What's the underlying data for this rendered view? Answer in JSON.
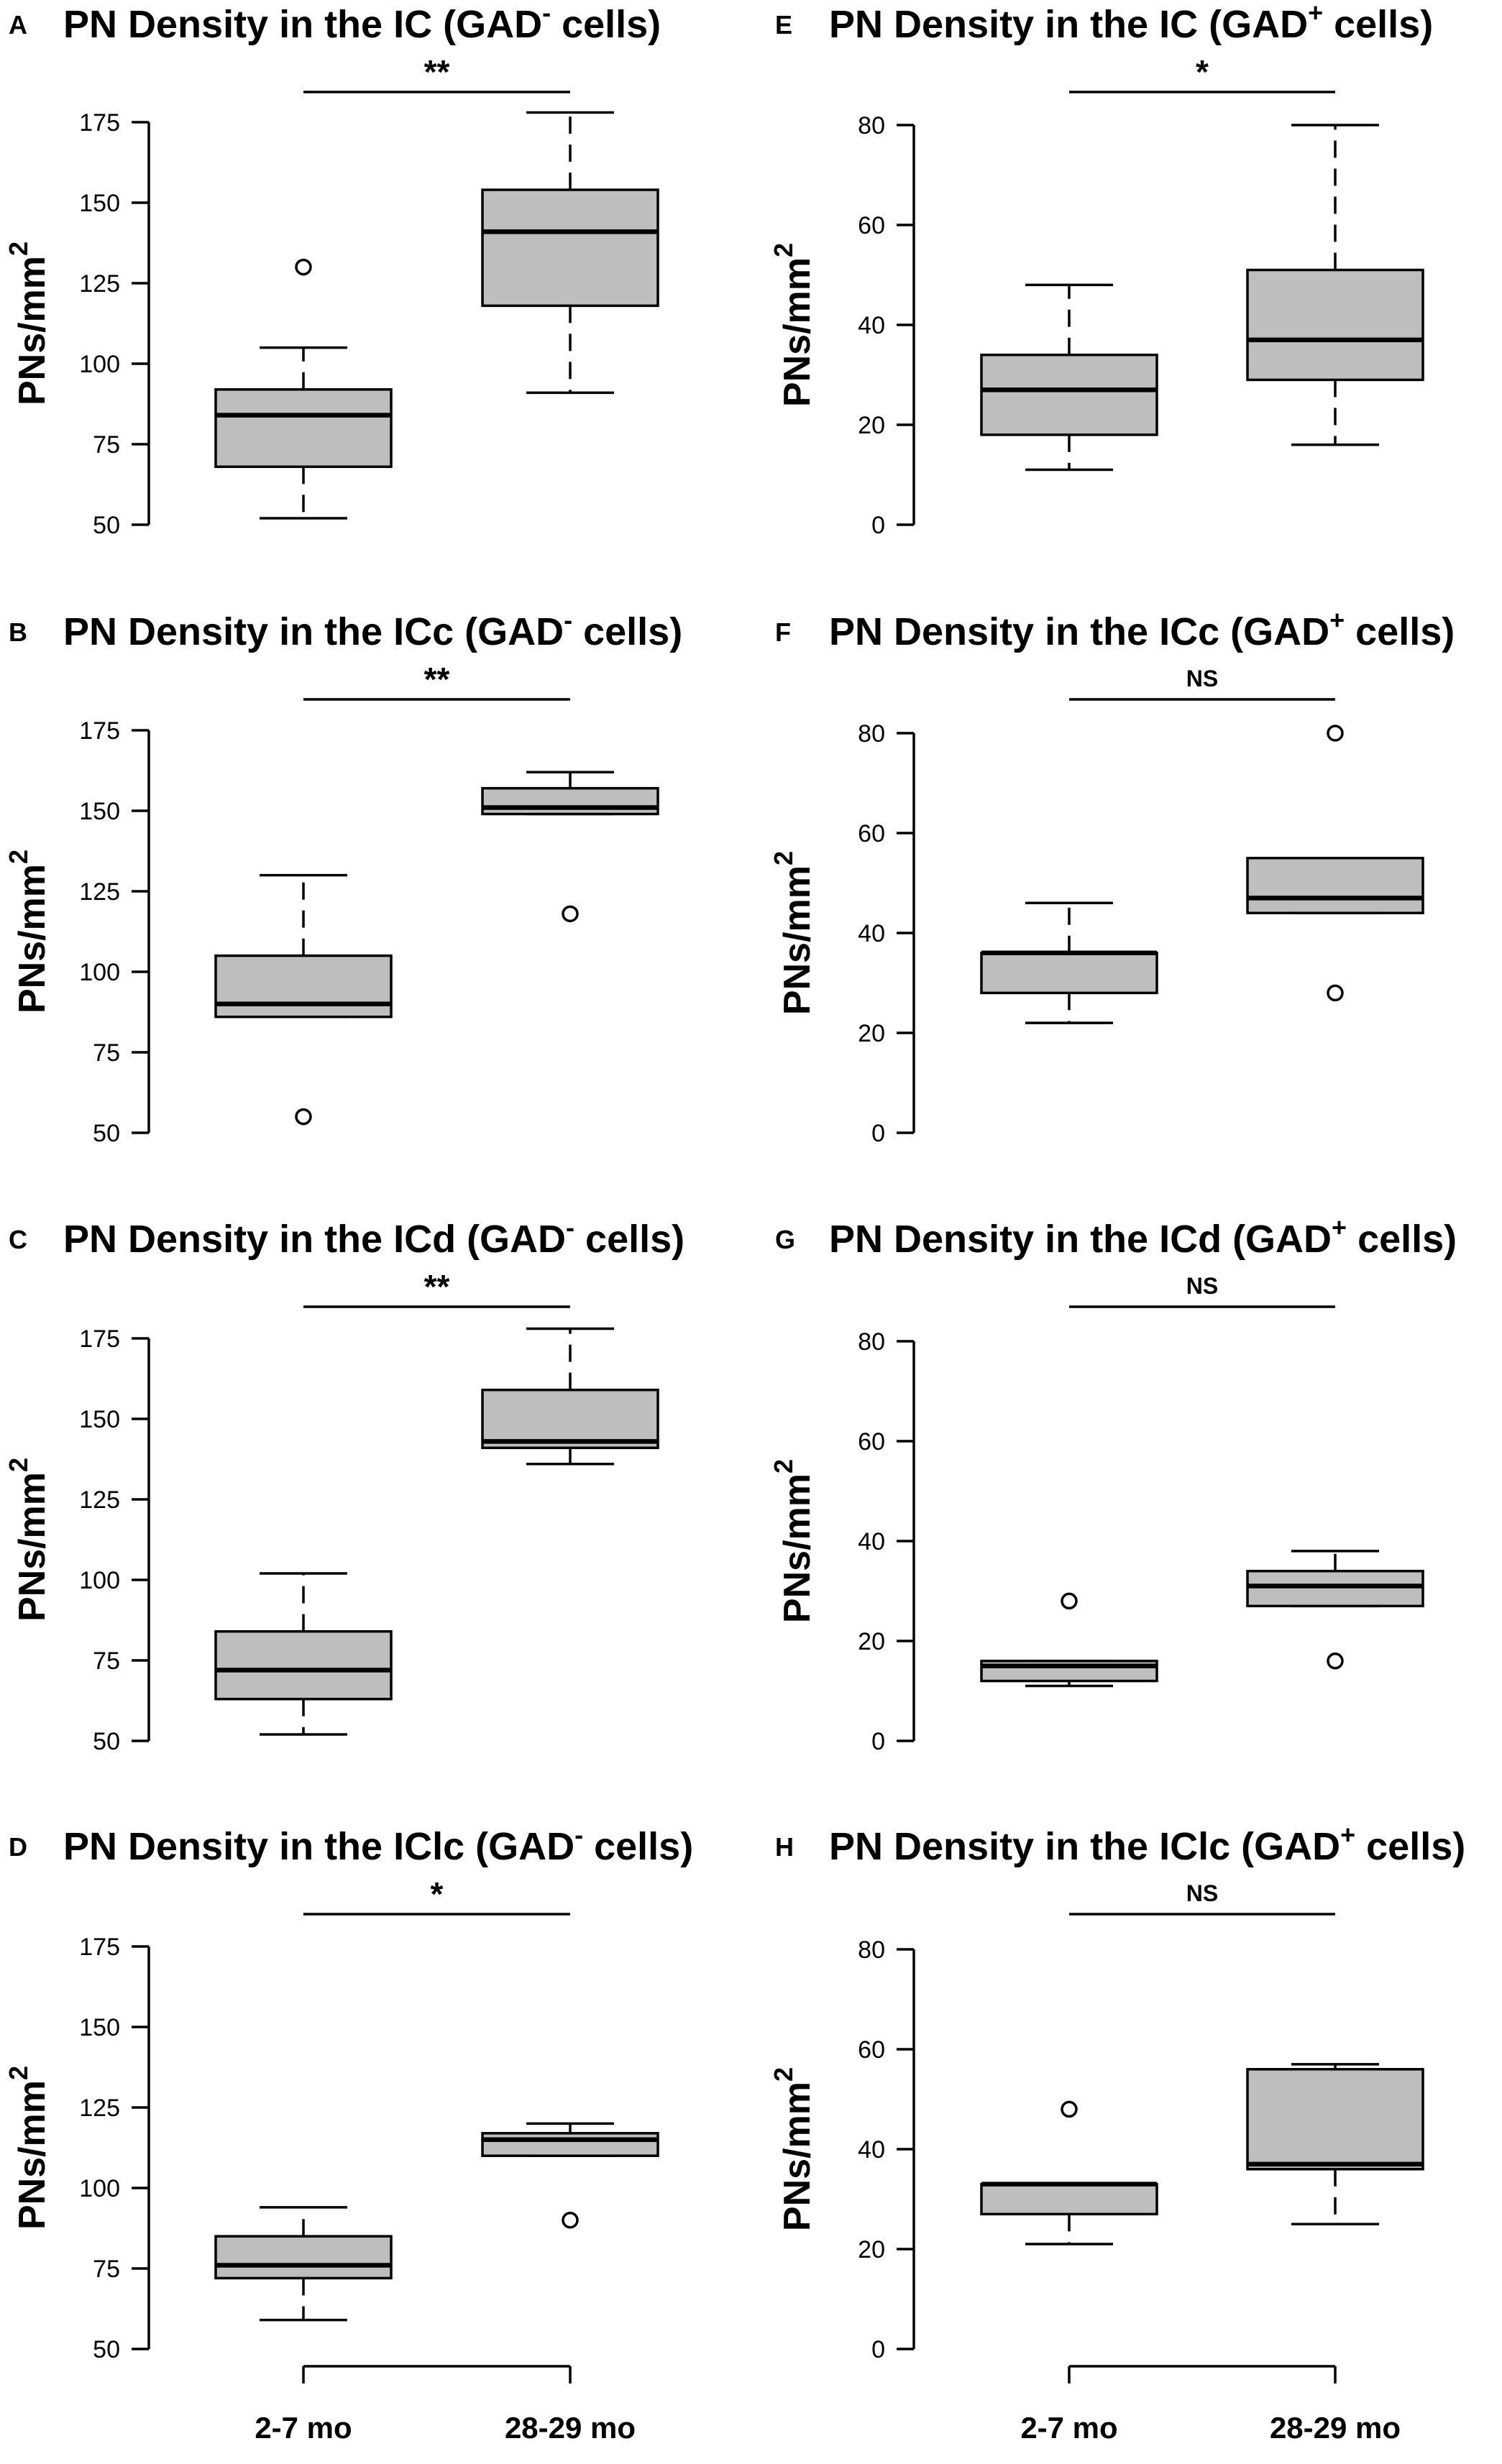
{
  "figure": {
    "x_categories": [
      "2-7 mo",
      "28-29 mo"
    ],
    "ylabel_main": "PNs/mm",
    "ylabel_sup": "2"
  },
  "chart_data": [
    {
      "type": "box",
      "letter": "A",
      "title": {
        "pre": "PN Density in the IC (GAD",
        "sup": "-",
        "post": " cells)"
      },
      "ylabel": "PNs/mm2",
      "ylim": [
        50,
        175
      ],
      "yticks": [
        50,
        75,
        100,
        125,
        150,
        175
      ],
      "significance": "**",
      "groups": [
        {
          "category": "2-7 mo",
          "whisker_low": 52,
          "q1": 68,
          "median": 84,
          "q3": 92,
          "whisker_high": 105,
          "outliers": [
            130
          ]
        },
        {
          "category": "28-29 mo",
          "whisker_low": 91,
          "q1": 118,
          "median": 141,
          "q3": 154,
          "whisker_high": 178,
          "outliers": []
        }
      ]
    },
    {
      "type": "box",
      "letter": "B",
      "title": {
        "pre": "PN Density in the ICc (GAD",
        "sup": "-",
        "post": " cells)"
      },
      "ylabel": "PNs/mm2",
      "ylim": [
        50,
        175
      ],
      "yticks": [
        50,
        75,
        100,
        125,
        150,
        175
      ],
      "significance": "**",
      "groups": [
        {
          "category": "2-7 mo",
          "whisker_low": 86,
          "q1": 86,
          "median": 90,
          "q3": 105,
          "whisker_high": 130,
          "outliers": [
            55
          ]
        },
        {
          "category": "28-29 mo",
          "whisker_low": 149,
          "q1": 149,
          "median": 151,
          "q3": 157,
          "whisker_high": 162,
          "outliers": [
            118
          ]
        }
      ]
    },
    {
      "type": "box",
      "letter": "C",
      "title": {
        "pre": "PN Density in the ICd (GAD",
        "sup": "-",
        "post": " cells)"
      },
      "ylabel": "PNs/mm2",
      "ylim": [
        50,
        175
      ],
      "yticks": [
        50,
        75,
        100,
        125,
        150,
        175
      ],
      "significance": "**",
      "groups": [
        {
          "category": "2-7 mo",
          "whisker_low": 52,
          "q1": 63,
          "median": 72,
          "q3": 84,
          "whisker_high": 102,
          "outliers": []
        },
        {
          "category": "28-29 mo",
          "whisker_low": 136,
          "q1": 141,
          "median": 143,
          "q3": 159,
          "whisker_high": 178,
          "outliers": []
        }
      ]
    },
    {
      "type": "box",
      "letter": "D",
      "title": {
        "pre": "PN Density in the IClc (GAD",
        "sup": "-",
        "post": " cells)"
      },
      "ylabel": "PNs/mm2",
      "ylim": [
        50,
        175
      ],
      "yticks": [
        50,
        75,
        100,
        125,
        150,
        175
      ],
      "significance": "*",
      "groups": [
        {
          "category": "2-7 mo",
          "whisker_low": 59,
          "q1": 72,
          "median": 76,
          "q3": 85,
          "whisker_high": 94,
          "outliers": []
        },
        {
          "category": "28-29 mo",
          "whisker_low": 110,
          "q1": 110,
          "median": 115,
          "q3": 117,
          "whisker_high": 120,
          "outliers": [
            90
          ]
        }
      ]
    },
    {
      "type": "box",
      "letter": "E",
      "title": {
        "pre": "PN Density in the IC (GAD",
        "sup": "+",
        "post": " cells)"
      },
      "ylabel": "PNs/mm2",
      "ylim": [
        0,
        80
      ],
      "yticks": [
        0,
        20,
        40,
        60,
        80
      ],
      "significance": "*",
      "groups": [
        {
          "category": "2-7 mo",
          "whisker_low": 11,
          "q1": 18,
          "median": 27,
          "q3": 34,
          "whisker_high": 48,
          "outliers": []
        },
        {
          "category": "28-29 mo",
          "whisker_low": 16,
          "q1": 29,
          "median": 37,
          "q3": 51,
          "whisker_high": 80,
          "outliers": []
        }
      ]
    },
    {
      "type": "box",
      "letter": "F",
      "title": {
        "pre": "PN Density in the ICc (GAD",
        "sup": "+",
        "post": " cells)"
      },
      "ylabel": "PNs/mm2",
      "ylim": [
        0,
        80
      ],
      "yticks": [
        0,
        20,
        40,
        60,
        80
      ],
      "significance": "NS",
      "groups": [
        {
          "category": "2-7 mo",
          "whisker_low": 22,
          "q1": 28,
          "median": 36,
          "q3": 36,
          "whisker_high": 46,
          "outliers": []
        },
        {
          "category": "28-29 mo",
          "whisker_low": 44,
          "q1": 44,
          "median": 47,
          "q3": 55,
          "whisker_high": 55,
          "outliers": [
            28,
            80
          ]
        }
      ]
    },
    {
      "type": "box",
      "letter": "G",
      "title": {
        "pre": "PN Density in the ICd (GAD",
        "sup": "+",
        "post": " cells)"
      },
      "ylabel": "PNs/mm2",
      "ylim": [
        0,
        80
      ],
      "yticks": [
        0,
        20,
        40,
        60,
        80
      ],
      "significance": "NS",
      "groups": [
        {
          "category": "2-7 mo",
          "whisker_low": 11,
          "q1": 12,
          "median": 15,
          "q3": 16,
          "whisker_high": 16,
          "outliers": [
            28
          ]
        },
        {
          "category": "28-29 mo",
          "whisker_low": 27,
          "q1": 27,
          "median": 31,
          "q3": 34,
          "whisker_high": 38,
          "outliers": [
            16
          ]
        }
      ]
    },
    {
      "type": "box",
      "letter": "H",
      "title": {
        "pre": "PN Density in the IClc (GAD",
        "sup": "+",
        "post": " cells)"
      },
      "ylabel": "PNs/mm2",
      "ylim": [
        0,
        80
      ],
      "yticks": [
        0,
        20,
        40,
        60,
        80
      ],
      "significance": "NS",
      "groups": [
        {
          "category": "2-7 mo",
          "whisker_low": 21,
          "q1": 27,
          "median": 33,
          "q3": 33,
          "whisker_high": 33,
          "outliers": [
            48
          ]
        },
        {
          "category": "28-29 mo",
          "whisker_low": 25,
          "q1": 36,
          "median": 37,
          "q3": 56,
          "whisker_high": 57,
          "outliers": []
        }
      ]
    }
  ]
}
